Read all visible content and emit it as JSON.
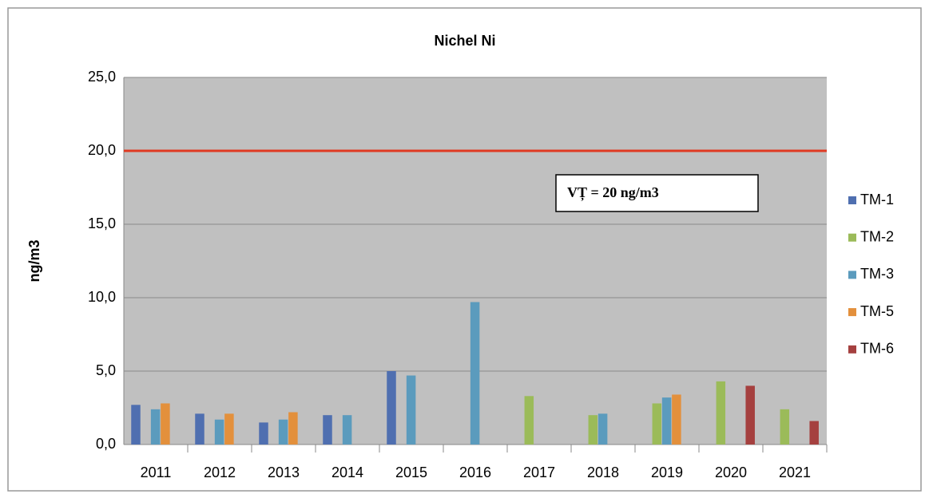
{
  "chart_data": {
    "type": "bar",
    "title": "Nichel Ni",
    "y_label": "ng/m3",
    "categories": [
      "2011",
      "2012",
      "2013",
      "2014",
      "2015",
      "2016",
      "2017",
      "2018",
      "2019",
      "2020",
      "2021"
    ],
    "series": [
      {
        "name": "TM-1",
        "color": "#4f6fb0",
        "values": [
          2.7,
          2.1,
          1.5,
          2.0,
          5.0,
          null,
          null,
          null,
          null,
          null,
          null
        ]
      },
      {
        "name": "TM-2",
        "color": "#9bbb59",
        "values": [
          null,
          null,
          null,
          null,
          null,
          null,
          3.3,
          2.0,
          2.8,
          4.3,
          2.4
        ]
      },
      {
        "name": "TM-3",
        "color": "#5b9bbd",
        "values": [
          2.4,
          1.7,
          1.7,
          2.0,
          4.7,
          9.7,
          null,
          2.1,
          3.2,
          null,
          null
        ]
      },
      {
        "name": "TM-5",
        "color": "#e3903c",
        "values": [
          2.8,
          2.1,
          2.2,
          null,
          null,
          null,
          null,
          null,
          3.4,
          null,
          null
        ]
      },
      {
        "name": "TM-6",
        "color": "#a5403f",
        "values": [
          null,
          null,
          null,
          null,
          null,
          null,
          null,
          null,
          null,
          4.0,
          1.6
        ]
      }
    ],
    "ylim": [
      0,
      25
    ],
    "yticks": [
      {
        "value": 0,
        "label": "0,0"
      },
      {
        "value": 5,
        "label": "5,0"
      },
      {
        "value": 10,
        "label": "10,0"
      },
      {
        "value": 15,
        "label": "15,0"
      },
      {
        "value": 20,
        "label": "20,0"
      },
      {
        "value": 25,
        "label": "25,0"
      }
    ],
    "grid": true,
    "reference_line": {
      "value": 20,
      "color": "#e03a22"
    },
    "annotation": "VȚ = 20 ng/m3",
    "legend": "right"
  }
}
